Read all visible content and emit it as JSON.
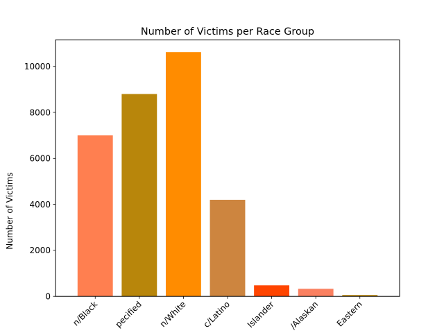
{
  "chart_data": {
    "type": "bar",
    "title": "Number of Victims per Race Group",
    "xlabel": "",
    "ylabel": "Number of Victims",
    "ylim": [
      0,
      11150
    ],
    "yticks": [
      0,
      2000,
      4000,
      6000,
      8000,
      10000
    ],
    "categories": [
      "n/Black",
      "pecified",
      "n/White",
      "c/Latino",
      "Islander",
      "/Alaskan",
      "Eastern"
    ],
    "values": [
      7000,
      8800,
      10620,
      4200,
      480,
      330,
      60
    ],
    "colors": [
      "#ff7f50",
      "#b8860b",
      "#ff8c00",
      "#cd853f",
      "#ff4500",
      "#fa8060",
      "#b8860b"
    ],
    "grid": false,
    "legend": "none"
  }
}
